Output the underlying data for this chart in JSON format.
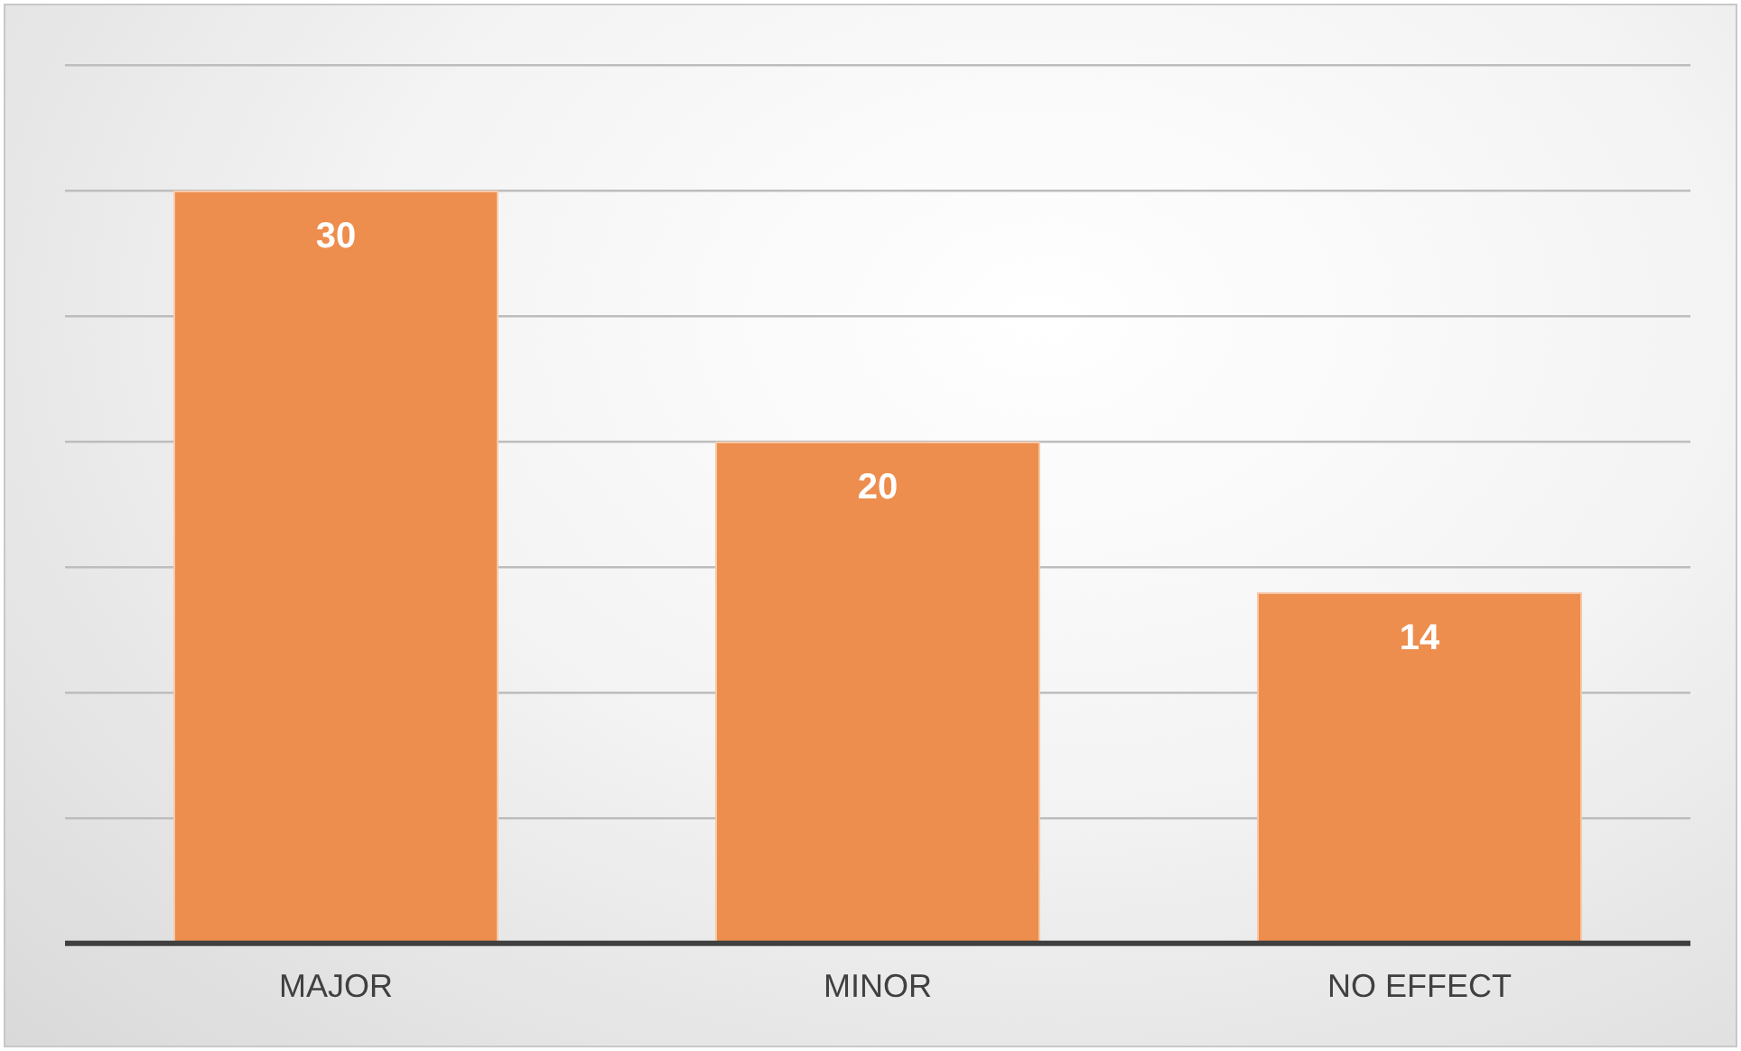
{
  "chart_data": {
    "type": "bar",
    "categories": [
      "MAJOR",
      "MINOR",
      "NO EFFECT"
    ],
    "values": [
      30,
      20,
      14
    ],
    "color": "#ed8d4e",
    "ylim": [
      0,
      35
    ],
    "yticks": [
      {
        "value": 0,
        "label": null
      },
      {
        "value": 5,
        "label": null
      },
      {
        "value": 10,
        "label": null
      },
      {
        "value": 15,
        "label": null
      },
      {
        "value": 20,
        "label": null
      },
      {
        "value": 25,
        "label": null
      },
      {
        "value": 30,
        "label": null
      },
      {
        "value": 35,
        "label": null
      }
    ],
    "grid": "y",
    "tick_labels": "x",
    "data_labels": true
  }
}
